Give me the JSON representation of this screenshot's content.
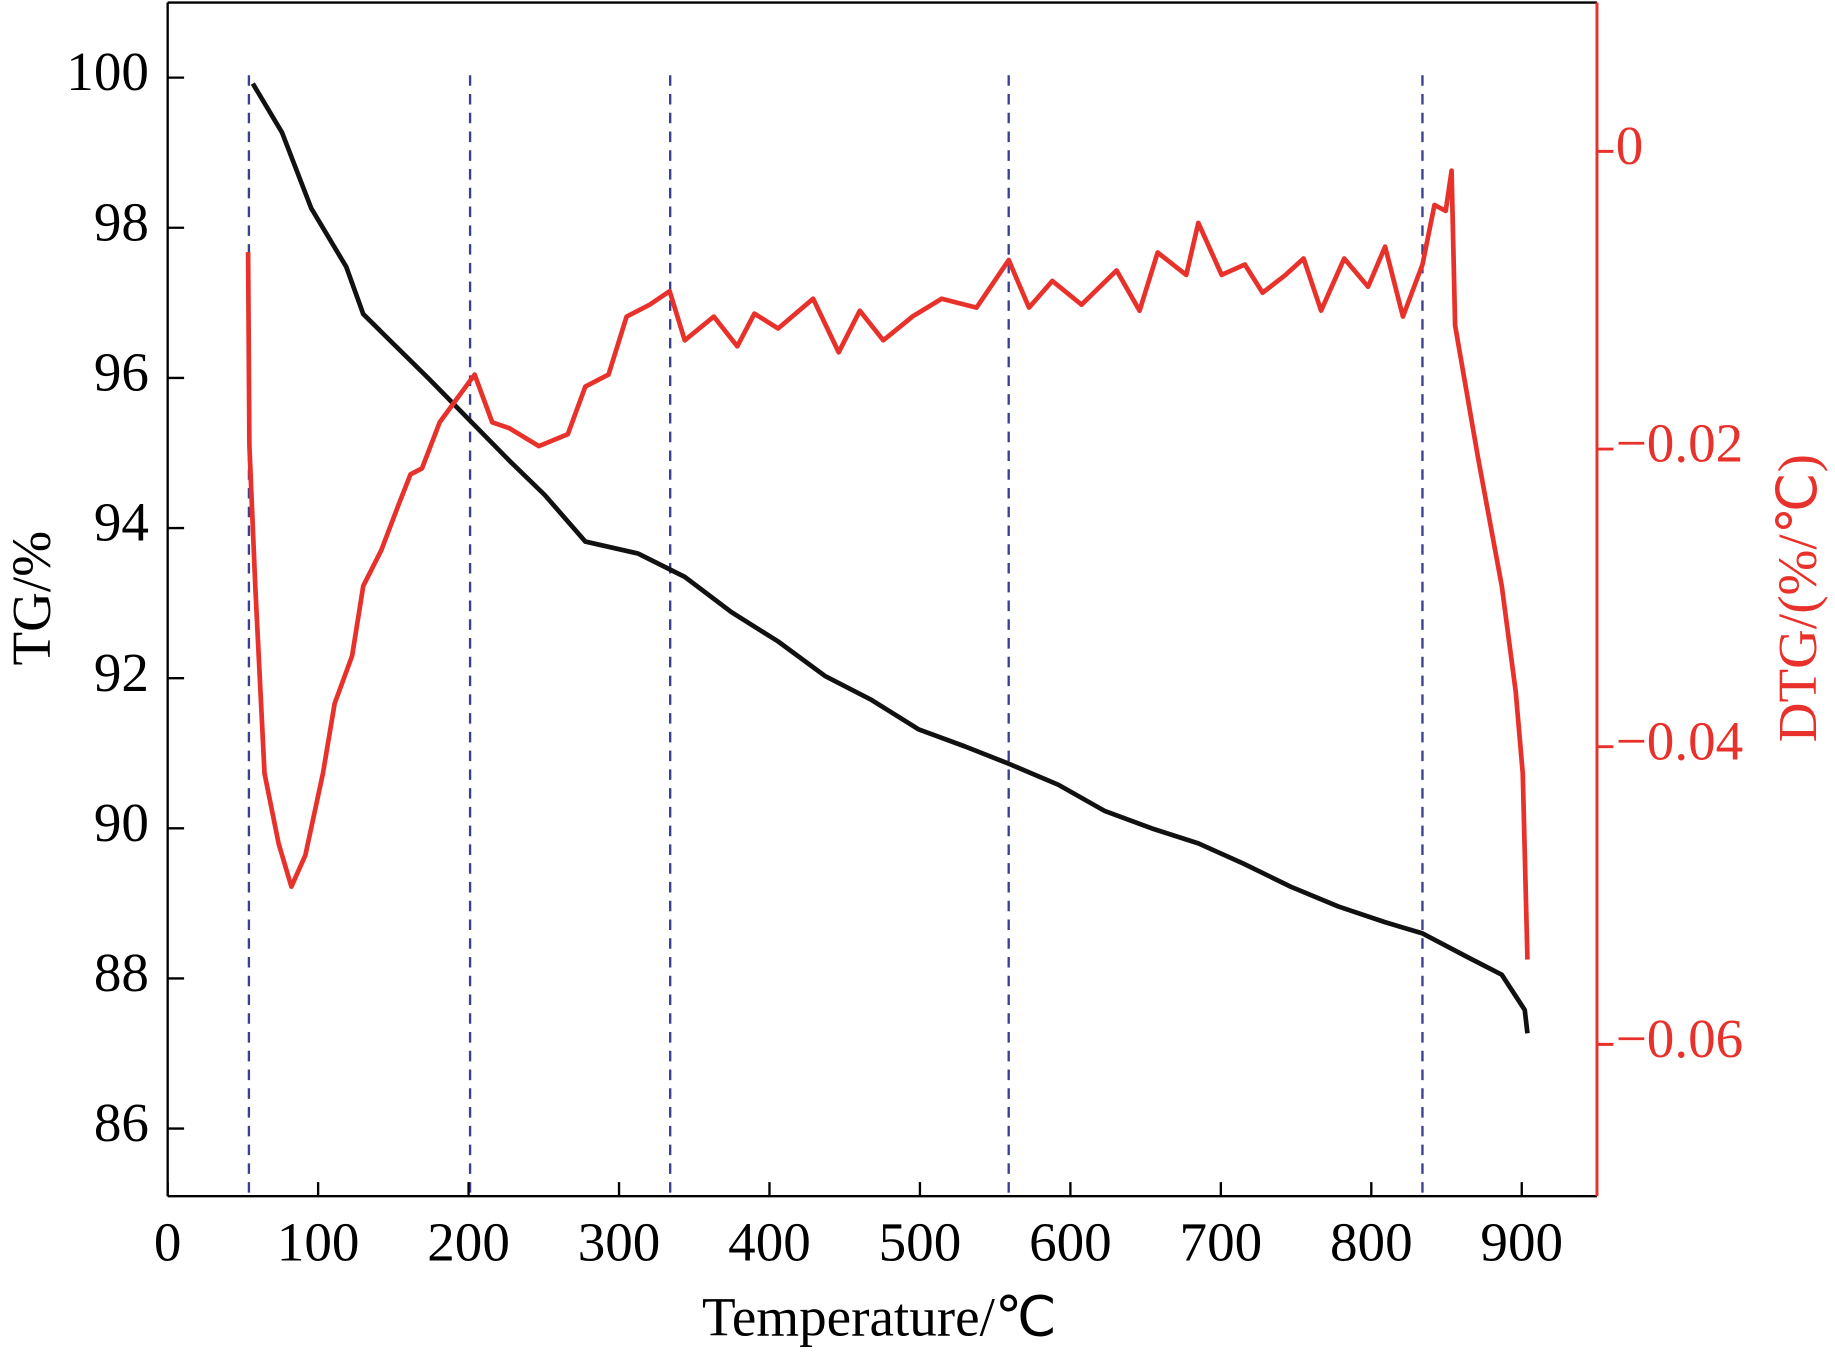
{
  "chart_data": {
    "type": "line",
    "xlabel": "Temperature/℃",
    "ylabel": "TG/%",
    "y2label": "DTG/(%/℃)",
    "xlim": [
      0,
      950
    ],
    "xticks": [
      0,
      100,
      200,
      300,
      400,
      500,
      600,
      700,
      800,
      900
    ],
    "ylim": [
      85.1,
      101
    ],
    "yticks": [
      86,
      88,
      90,
      92,
      94,
      96,
      98,
      100
    ],
    "y2lim": [
      -0.0702,
      0.01
    ],
    "y2ticks": [
      0,
      {
        "value": -0.02,
        "label": "−0.02"
      },
      {
        "value": -0.04,
        "label": "−0.04"
      },
      {
        "value": -0.06,
        "label": "−0.06"
      }
    ],
    "y2color": "#e8312a",
    "vlines": [
      54,
      201,
      334,
      559,
      834
    ],
    "vline_color": "#3b3f8f",
    "series": [
      {
        "color": "#111111",
        "axis": "y",
        "x": [
          56.6,
          76,
          95.4,
          118.7,
          130,
          149.7,
          173,
          200,
          227,
          250.6,
          277.6,
          312.6,
          343.7,
          374.7,
          405.7,
          436.8,
          467.8,
          499,
          530,
          559,
          592,
          623,
          654,
          685,
          715,
          746.7,
          778,
          809,
          834,
          863.5,
          886.7,
          902,
          903.8
        ],
        "values": [
          99.92,
          99.27,
          98.26,
          97.48,
          96.85,
          96.46,
          96.0,
          95.45,
          94.9,
          94.44,
          93.82,
          93.66,
          93.35,
          92.88,
          92.49,
          92.03,
          91.71,
          91.32,
          91.09,
          90.86,
          90.58,
          90.23,
          90.0,
          89.8,
          89.53,
          89.22,
          88.96,
          88.75,
          88.6,
          88.29,
          88.05,
          87.58,
          87.27
        ]
      },
      {
        "color": "#e8312a",
        "axis": "y2",
        "x": [
          53.5,
          54.3,
          58.2,
          64.4,
          73.7,
          82.2,
          91.5,
          103.2,
          111,
          122.6,
          130,
          142,
          153.6,
          161.4,
          169,
          180.8,
          192.4,
          204,
          215.7,
          227,
          246.7,
          266,
          277.6,
          293,
          305,
          320.4,
          333.6,
          343.7,
          363,
          378.6,
          390,
          405.7,
          429,
          446,
          460,
          475.6,
          495,
          514.4,
          537.6,
          559,
          572.5,
          588,
          607.4,
          630.7,
          646,
          658,
          677,
          685,
          700.5,
          716,
          727.7,
          743,
          755,
          766.6,
          782,
          797.9,
          809.2,
          821,
          834,
          842,
          849.5,
          853.4,
          855.7,
          871,
          886.7,
          896,
          900.7,
          903.8
        ],
        "values": [
          -0.00677,
          -0.01976,
          -0.0292,
          -0.0418,
          -0.0465,
          -0.0494,
          -0.0473,
          -0.0418,
          -0.0371,
          -0.0339,
          -0.0292,
          -0.0268,
          -0.0237,
          -0.0217,
          -0.0213,
          -0.0182,
          -0.0166,
          -0.015,
          -0.0182,
          -0.0186,
          -0.0198,
          -0.019,
          -0.0158,
          -0.015,
          -0.0111,
          -0.0103,
          -0.0094,
          -0.0127,
          -0.0111,
          -0.0131,
          -0.0109,
          -0.0119,
          -0.0099,
          -0.0135,
          -0.0107,
          -0.0127,
          -0.0111,
          -0.0099,
          -0.0105,
          -0.0073,
          -0.0105,
          -0.0087,
          -0.0103,
          -0.008,
          -0.0107,
          -0.0068,
          -0.0083,
          -0.0048,
          -0.0083,
          -0.0076,
          -0.0095,
          -0.0083,
          -0.0072,
          -0.0107,
          -0.0072,
          -0.0091,
          -0.0064,
          -0.0111,
          -0.0076,
          -0.0036,
          -0.004,
          -0.0013,
          -0.0117,
          -0.0206,
          -0.0292,
          -0.0363,
          -0.0418,
          -0.0543
        ]
      }
    ]
  }
}
